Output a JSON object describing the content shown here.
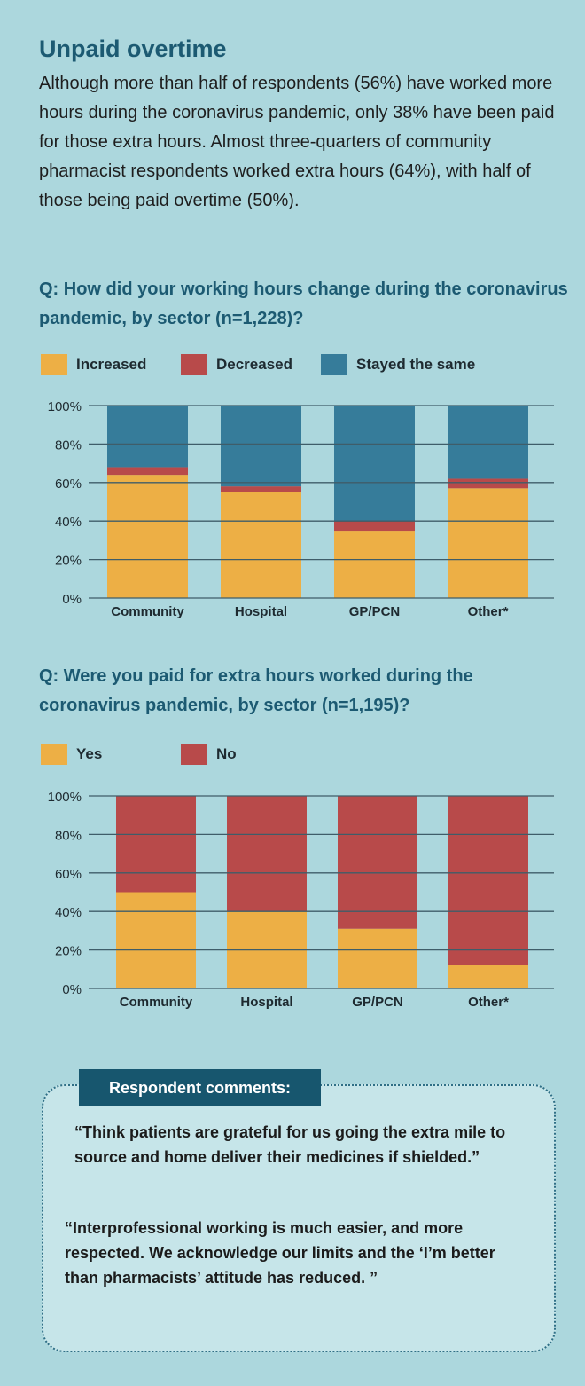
{
  "title": "Unpaid overtime",
  "intro": "Although more than half of respondents (56%) have worked more hours during the coronavirus pandemic, only 38% have been paid for those extra hours. Almost three-quarters of community pharmacist respondents worked extra hours (64%), with half of those being paid overtime (50%).",
  "colors": {
    "increased": "#edaf45",
    "decreased": "#b84a4a",
    "same": "#367c9a",
    "yes": "#edaf45",
    "no": "#b84a4a"
  },
  "chart_data": [
    {
      "type": "bar",
      "stacked": true,
      "title": "Q: How did your working hours change during the coronavirus pandemic, by sector (n=1,228)?",
      "categories": [
        "Community",
        "Hospital",
        "GP/PCN",
        "Other*"
      ],
      "series": [
        {
          "name": "Increased",
          "values": [
            64,
            55,
            35,
            57
          ]
        },
        {
          "name": "Decreased",
          "values": [
            4,
            3,
            5,
            5
          ]
        },
        {
          "name": "Stayed the same",
          "values": [
            32,
            42,
            60,
            38
          ]
        }
      ],
      "yticks": [
        "0%",
        "20%",
        "40%",
        "60%",
        "80%",
        "100%"
      ],
      "ylim": [
        0,
        100
      ],
      "legend": "top"
    },
    {
      "type": "bar",
      "stacked": true,
      "title": "Q: Were you paid for extra hours worked during the coronavirus pandemic, by sector (n=1,195)?",
      "categories": [
        "Community",
        "Hospital",
        "GP/PCN",
        "Other*"
      ],
      "series": [
        {
          "name": "Yes",
          "values": [
            50,
            40,
            31,
            12
          ]
        },
        {
          "name": "No",
          "values": [
            50,
            60,
            69,
            88
          ]
        }
      ],
      "yticks": [
        "0%",
        "20%",
        "40%",
        "60%",
        "80%",
        "100%"
      ],
      "ylim": [
        0,
        100
      ],
      "legend": "top"
    }
  ],
  "comments": {
    "heading": "Respondent comments:",
    "quotes": [
      "“Think patients are grateful for us going the extra mile to source and home deliver their medicines if shielded.”",
      "“Interprofessional working is much easier, and more respected. We acknowledge our limits and the ‘I’m better than pharmacists’ attitude has reduced. ”"
    ]
  }
}
